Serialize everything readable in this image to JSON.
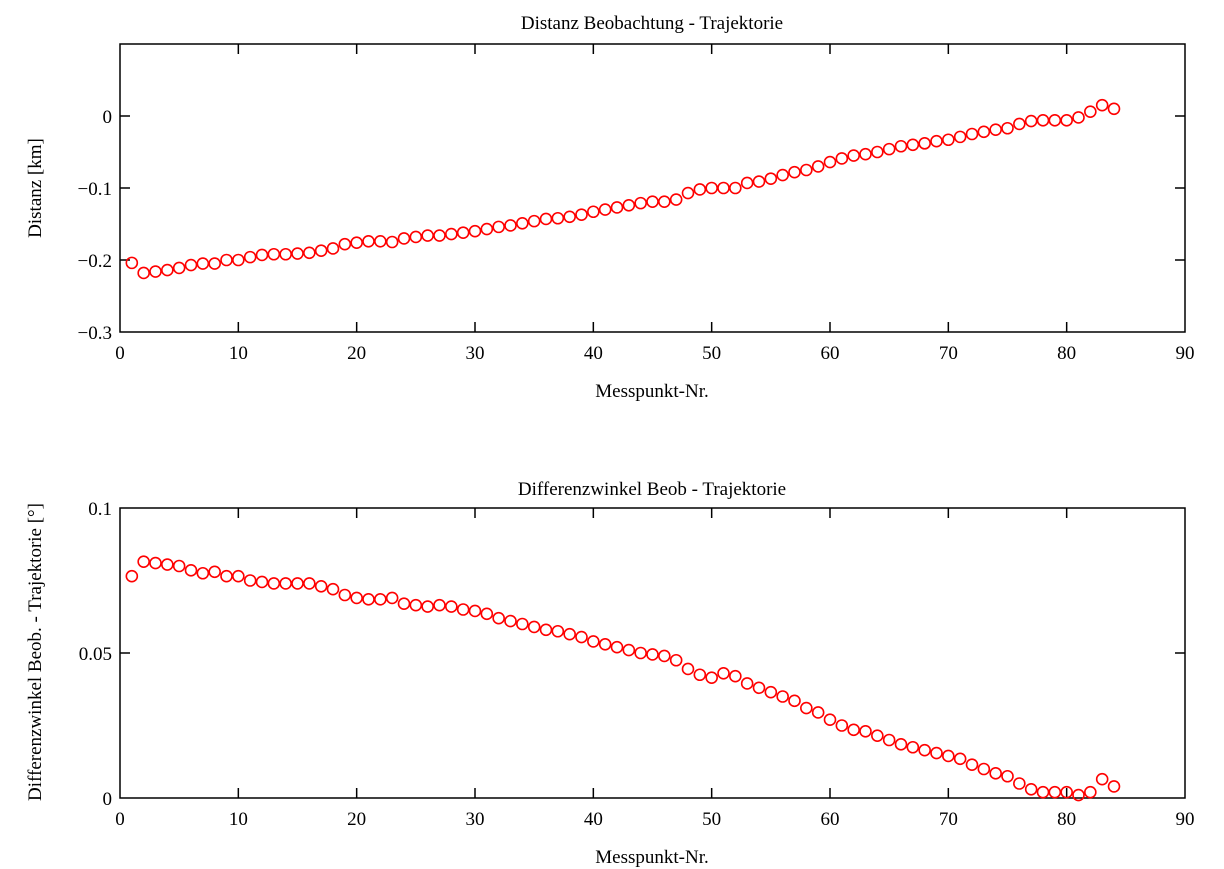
{
  "chart_data": [
    {
      "type": "scatter",
      "title": "Distanz Beobachtung - Trajektorie",
      "xlabel": "Messpunkt-Nr.",
      "ylabel": "Distanz [km]",
      "xlim": [
        0,
        90
      ],
      "ylim": [
        -0.3,
        0.1
      ],
      "xticks": [
        0,
        10,
        20,
        30,
        40,
        50,
        60,
        70,
        80,
        90
      ],
      "yticks": [
        -0.3,
        -0.2,
        -0.1,
        0
      ],
      "ytick_labels": [
        "−0.3",
        "−0.2",
        "−0.1",
        "0"
      ],
      "marker": "circle-open",
      "color": "#ff0000",
      "x": [
        1,
        2,
        3,
        4,
        5,
        6,
        7,
        8,
        9,
        10,
        11,
        12,
        13,
        14,
        15,
        16,
        17,
        18,
        19,
        20,
        21,
        22,
        23,
        24,
        25,
        26,
        27,
        28,
        29,
        30,
        31,
        32,
        33,
        34,
        35,
        36,
        37,
        38,
        39,
        40,
        41,
        42,
        43,
        44,
        45,
        46,
        47,
        48,
        49,
        50,
        51,
        52,
        53,
        54,
        55,
        56,
        57,
        58,
        59,
        60,
        61,
        62,
        63,
        64,
        65,
        66,
        67,
        68,
        69,
        70,
        71,
        72,
        73,
        74,
        75,
        76,
        77,
        78,
        79,
        80,
        81,
        82,
        83,
        84
      ],
      "y": [
        -0.204,
        -0.218,
        -0.216,
        -0.214,
        -0.211,
        -0.207,
        -0.205,
        -0.205,
        -0.2,
        -0.2,
        -0.196,
        -0.193,
        -0.192,
        -0.192,
        -0.191,
        -0.19,
        -0.187,
        -0.184,
        -0.178,
        -0.176,
        -0.174,
        -0.174,
        -0.175,
        -0.17,
        -0.168,
        -0.166,
        -0.166,
        -0.164,
        -0.162,
        -0.16,
        -0.157,
        -0.154,
        -0.152,
        -0.149,
        -0.146,
        -0.143,
        -0.142,
        -0.14,
        -0.137,
        -0.133,
        -0.13,
        -0.127,
        -0.124,
        -0.121,
        -0.119,
        -0.119,
        -0.116,
        -0.107,
        -0.102,
        -0.1,
        -0.1,
        -0.1,
        -0.093,
        -0.091,
        -0.087,
        -0.082,
        -0.078,
        -0.075,
        -0.07,
        -0.064,
        -0.059,
        -0.055,
        -0.053,
        -0.05,
        -0.046,
        -0.042,
        -0.04,
        -0.038,
        -0.035,
        -0.033,
        -0.029,
        -0.025,
        -0.022,
        -0.019,
        -0.017,
        -0.011,
        -0.007,
        -0.006,
        -0.006,
        -0.006,
        -0.002,
        0.006,
        0.015,
        0.01
      ]
    },
    {
      "type": "scatter",
      "title": "Differenzwinkel Beob - Trajektorie",
      "xlabel": "Messpunkt-Nr.",
      "ylabel": "Differenzwinkel Beob. - Trajektorie [°]",
      "xlim": [
        0,
        90
      ],
      "ylim": [
        0,
        0.1
      ],
      "xticks": [
        0,
        10,
        20,
        30,
        40,
        50,
        60,
        70,
        80,
        90
      ],
      "yticks": [
        0,
        0.05,
        0.1
      ],
      "ytick_labels": [
        "0",
        "0.05",
        "0.1"
      ],
      "marker": "circle-open",
      "color": "#ff0000",
      "x": [
        1,
        2,
        3,
        4,
        5,
        6,
        7,
        8,
        9,
        10,
        11,
        12,
        13,
        14,
        15,
        16,
        17,
        18,
        19,
        20,
        21,
        22,
        23,
        24,
        25,
        26,
        27,
        28,
        29,
        30,
        31,
        32,
        33,
        34,
        35,
        36,
        37,
        38,
        39,
        40,
        41,
        42,
        43,
        44,
        45,
        46,
        47,
        48,
        49,
        50,
        51,
        52,
        53,
        54,
        55,
        56,
        57,
        58,
        59,
        60,
        61,
        62,
        63,
        64,
        65,
        66,
        67,
        68,
        69,
        70,
        71,
        72,
        73,
        74,
        75,
        76,
        77,
        78,
        79,
        80,
        81,
        82,
        83,
        84
      ],
      "y": [
        0.0765,
        0.0815,
        0.081,
        0.0805,
        0.08,
        0.0785,
        0.0775,
        0.078,
        0.0765,
        0.0765,
        0.075,
        0.0745,
        0.074,
        0.074,
        0.074,
        0.074,
        0.073,
        0.072,
        0.07,
        0.069,
        0.0685,
        0.0685,
        0.069,
        0.067,
        0.0665,
        0.066,
        0.0665,
        0.066,
        0.065,
        0.0645,
        0.0635,
        0.062,
        0.061,
        0.06,
        0.059,
        0.058,
        0.0575,
        0.0565,
        0.0555,
        0.054,
        0.053,
        0.052,
        0.051,
        0.05,
        0.0495,
        0.049,
        0.0475,
        0.0445,
        0.0425,
        0.0415,
        0.043,
        0.042,
        0.0395,
        0.038,
        0.0365,
        0.035,
        0.0335,
        0.031,
        0.0295,
        0.027,
        0.025,
        0.0235,
        0.023,
        0.0215,
        0.02,
        0.0185,
        0.0175,
        0.0165,
        0.0155,
        0.0145,
        0.0135,
        0.0115,
        0.01,
        0.0085,
        0.0075,
        0.005,
        0.003,
        0.002,
        0.002,
        0.002,
        0.001,
        0.002,
        0.0065,
        0.004
      ]
    }
  ]
}
